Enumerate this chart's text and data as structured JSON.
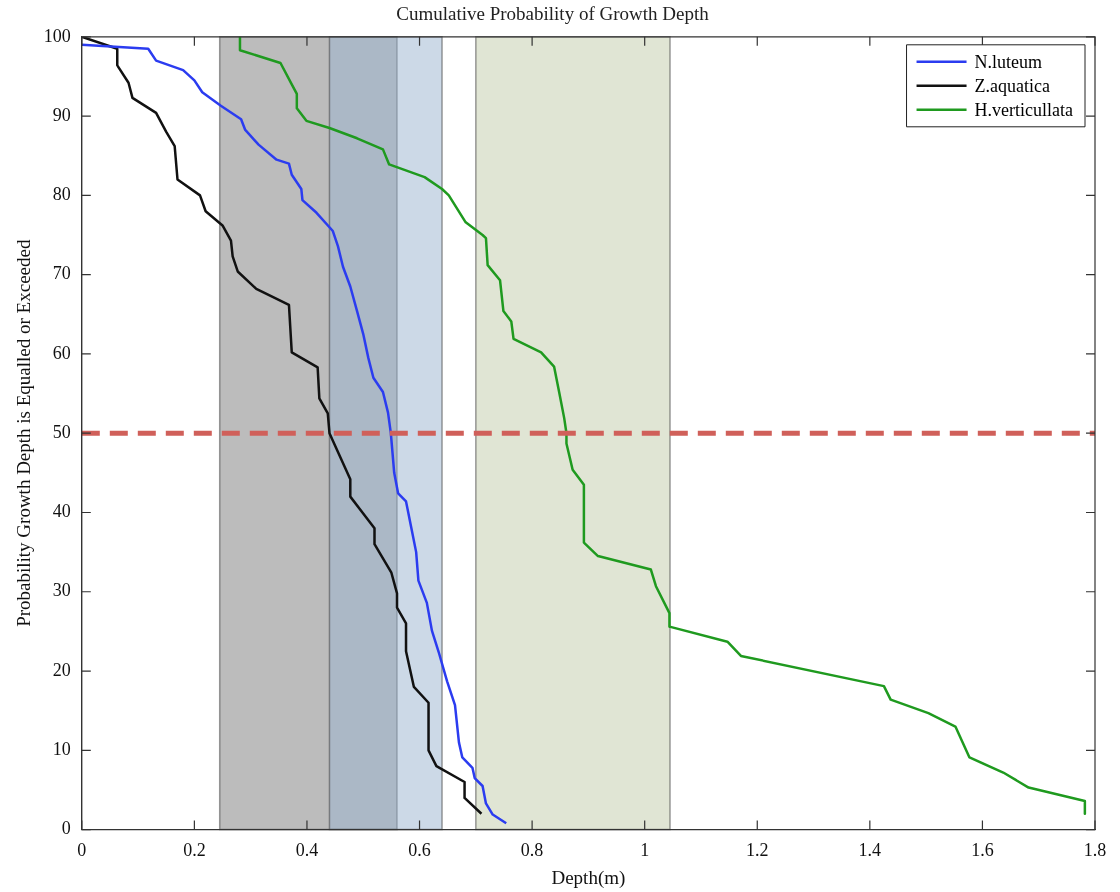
{
  "chart_data": {
    "type": "line",
    "title": "Cumulative Probability of Growth Depth",
    "xlabel": "Depth(m)",
    "ylabel": "Probability Growth Depth is Equalled or Exceeded",
    "xlim": [
      0,
      1.8
    ],
    "xticks": [
      0,
      0.2,
      0.4,
      0.6,
      0.8,
      1,
      1.2,
      1.4,
      1.6,
      1.8
    ],
    "ylim": [
      0,
      100
    ],
    "yticks": [
      0,
      10,
      20,
      30,
      40,
      50,
      60,
      70,
      80,
      90,
      100
    ],
    "grid": false,
    "legend": "top right",
    "series": [
      {
        "name": "N.luteum",
        "color": "#2b3cf0",
        "x": [
          0,
          0.118,
          0.132,
          0.18,
          0.2,
          0.214,
          0.247,
          0.283,
          0.29,
          0.314,
          0.346,
          0.368,
          0.373,
          0.39,
          0.392,
          0.417,
          0.446,
          0.455,
          0.464,
          0.477,
          0.489,
          0.5,
          0.509,
          0.518,
          0.535,
          0.544,
          0.549,
          0.555,
          0.562,
          0.576,
          0.585,
          0.594,
          0.598,
          0.613,
          0.622,
          0.634,
          0.649,
          0.663,
          0.67,
          0.676,
          0.694,
          0.698,
          0.712,
          0.718,
          0.73,
          0.754
        ],
        "values": [
          99,
          98.5,
          97,
          95.8,
          94.5,
          93,
          91.3,
          89.6,
          88.3,
          86.4,
          84.5,
          84,
          82.6,
          80.8,
          79.4,
          77.8,
          75.5,
          73.6,
          71,
          68.5,
          65.4,
          62.5,
          59.5,
          57,
          55.2,
          52.6,
          50,
          45,
          42.4,
          41.4,
          38.2,
          35,
          31.4,
          28.6,
          25.1,
          22.4,
          18.7,
          15.7,
          11,
          9.1,
          7.8,
          6.5,
          5.5,
          3.3,
          1.9,
          0.8
        ]
      },
      {
        "name": "Z.aquatica",
        "color": "#111111",
        "x": [
          0,
          0.063,
          0.063,
          0.083,
          0.09,
          0.132,
          0.15,
          0.165,
          0.17,
          0.21,
          0.22,
          0.25,
          0.265,
          0.268,
          0.277,
          0.31,
          0.368,
          0.373,
          0.419,
          0.422,
          0.437,
          0.44,
          0.477,
          0.477,
          0.52,
          0.52,
          0.55,
          0.56,
          0.56,
          0.576,
          0.576,
          0.59,
          0.616,
          0.616,
          0.63,
          0.68,
          0.68,
          0.71
        ],
        "values": [
          100,
          98.5,
          96.4,
          94.2,
          92.3,
          90.4,
          88,
          86.2,
          82,
          80,
          78,
          76.2,
          74.3,
          72.3,
          70.4,
          68.2,
          66.2,
          60.2,
          58.3,
          54.4,
          52.5,
          50,
          44.2,
          42,
          38,
          36,
          32.4,
          29.8,
          28,
          26,
          22.5,
          18,
          16,
          10,
          8,
          6,
          4,
          2
        ]
      },
      {
        "name": "H.verticullata",
        "color": "#1f9a1f",
        "x": [
          0.281,
          0.281,
          0.353,
          0.373,
          0.382,
          0.382,
          0.399,
          0.44,
          0.489,
          0.535,
          0.546,
          0.609,
          0.64,
          0.652,
          0.682,
          0.712,
          0.718,
          0.721,
          0.743,
          0.749,
          0.763,
          0.767,
          0.816,
          0.839,
          0.848,
          0.857,
          0.861,
          0.861,
          0.872,
          0.892,
          0.892,
          0.917,
          1.011,
          1.02,
          1.044,
          1.044,
          1.147,
          1.171,
          1.425,
          1.437,
          1.504,
          1.552,
          1.577,
          1.637,
          1.682,
          1.782,
          1.782
        ],
        "values": [
          100,
          98.3,
          96.7,
          94,
          92.8,
          91,
          89.4,
          88.5,
          87.2,
          85.8,
          83.9,
          82.3,
          80.8,
          80,
          76.6,
          75,
          74.6,
          71.2,
          69.3,
          65.4,
          64.1,
          61.9,
          60.2,
          58.4,
          55.2,
          51.9,
          50,
          48.7,
          45.4,
          43.5,
          36.2,
          34.5,
          32.8,
          30.7,
          27.3,
          25.6,
          23.7,
          21.9,
          18.1,
          16.4,
          14.7,
          13,
          9.1,
          7.2,
          5.3,
          3.6,
          2
        ]
      }
    ],
    "ref_lines": [
      {
        "axis": "y",
        "value": 50,
        "color": "#d0605a",
        "line_style": "dashed"
      }
    ],
    "bands": [
      {
        "axis": "x",
        "from": 0.245,
        "to": 0.56,
        "color": "#7a7a7a"
      },
      {
        "axis": "x",
        "from": 0.44,
        "to": 0.64,
        "color": "#9ab3cf"
      },
      {
        "axis": "x",
        "from": 0.7,
        "to": 1.045,
        "color": "#c2cca9"
      }
    ]
  }
}
